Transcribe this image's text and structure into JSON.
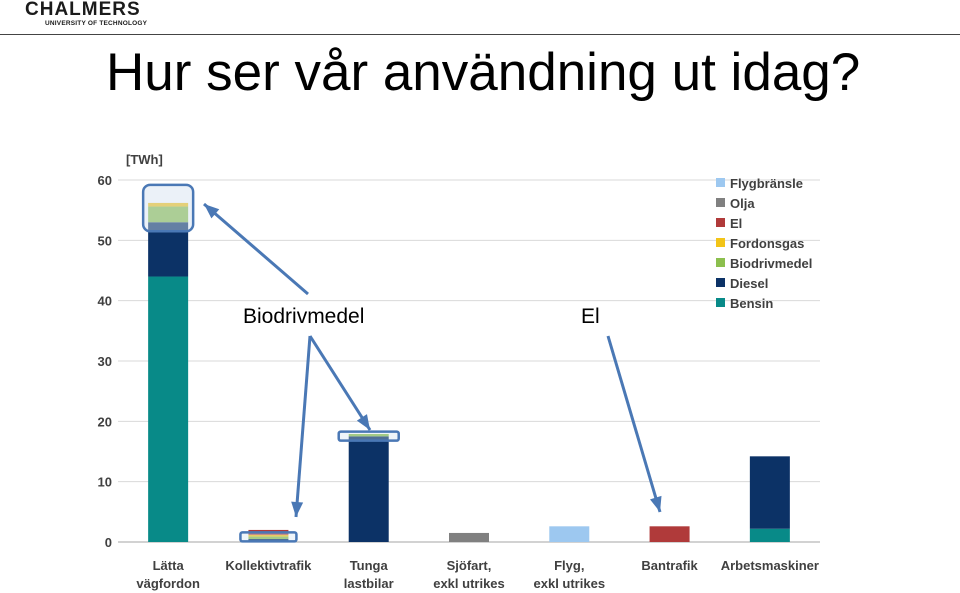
{
  "header": {
    "logo_main": "CHALMERS",
    "logo_sub": "UNIVERSITY OF TECHNOLOGY",
    "title": "Hur ser vår användning ut idag?"
  },
  "annotations": {
    "biodrivmedel": "Biodrivmedel",
    "el": "El"
  },
  "colors": {
    "Flygbränsle": "#9dc8f0",
    "Olja": "#808080",
    "El": "#b03a3a",
    "Fordonsgas": "#f2c418",
    "Biodrivmedel": "#8cbf4e",
    "Diesel": "#0c3266",
    "Bensin": "#088a88",
    "annotation": "#4a78b5"
  },
  "chart_data": {
    "type": "bar",
    "stacked": true,
    "unit_label": "[TWh]",
    "ylim": [
      0,
      60
    ],
    "yticks": [
      0,
      10,
      20,
      30,
      40,
      50,
      60
    ],
    "grid": true,
    "legend_position": "top-right",
    "categories": [
      [
        "Lätta",
        "vägfordon"
      ],
      [
        "Kollektivtrafik"
      ],
      [
        "Tunga",
        "lastbilar"
      ],
      [
        "Sjöfart,",
        "exkl utrikes"
      ],
      [
        "Flyg,",
        "exkl utrikes"
      ],
      [
        "Bantrafik"
      ],
      [
        "Arbetsmaskiner"
      ]
    ],
    "series": [
      {
        "name": "Bensin",
        "values": [
          44,
          0,
          0,
          0,
          0,
          0,
          2.2
        ]
      },
      {
        "name": "Diesel",
        "values": [
          9,
          0.5,
          17.5,
          0,
          0,
          0,
          12
        ]
      },
      {
        "name": "Biodrivmedel",
        "values": [
          2.6,
          0.4,
          0.4,
          0,
          0,
          0,
          0
        ]
      },
      {
        "name": "Fordonsgas",
        "values": [
          0.6,
          0.3,
          0,
          0,
          0,
          0,
          0
        ]
      },
      {
        "name": "El",
        "values": [
          0,
          0.8,
          0,
          0,
          0,
          2.6,
          0
        ]
      },
      {
        "name": "Olja",
        "values": [
          0,
          0,
          0,
          1.5,
          0,
          0,
          0
        ]
      },
      {
        "name": "Flygbränsle",
        "values": [
          0,
          0,
          0,
          0,
          2.6,
          0,
          0
        ]
      }
    ],
    "legend_order": [
      "Flygbränsle",
      "Olja",
      "El",
      "Fordonsgas",
      "Biodrivmedel",
      "Diesel",
      "Bensin"
    ]
  }
}
